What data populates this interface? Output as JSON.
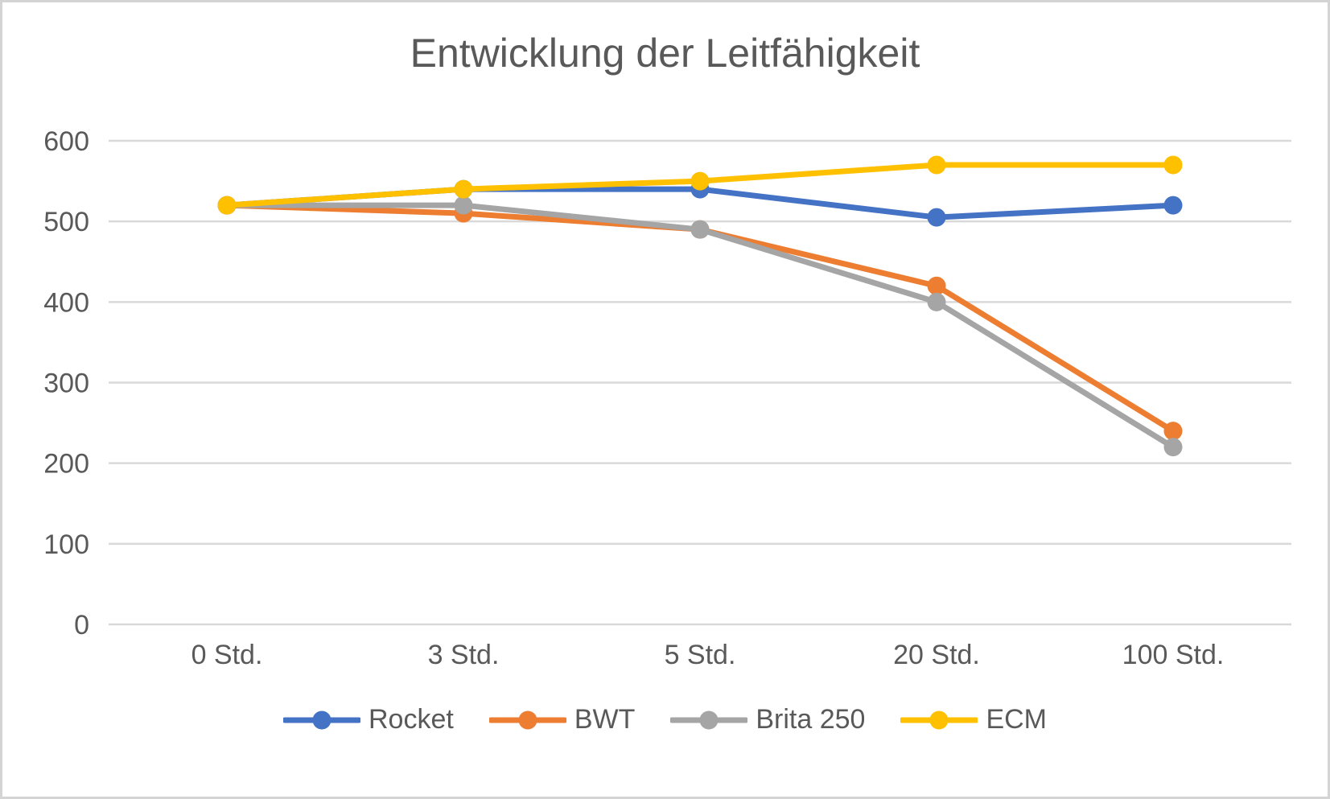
{
  "chart_data": {
    "type": "line",
    "title": "Entwicklung der Leitfähigkeit",
    "categories": [
      "0 Std.",
      "3 Std.",
      "5 Std.",
      "20 Std.",
      "100 Std."
    ],
    "series": [
      {
        "name": "Rocket",
        "color": "#4472C4",
        "values": [
          520,
          540,
          540,
          505,
          520
        ]
      },
      {
        "name": "BWT",
        "color": "#ED7D31",
        "values": [
          520,
          510,
          490,
          420,
          240
        ]
      },
      {
        "name": "Brita 250",
        "color": "#A5A5A5",
        "values": [
          520,
          520,
          490,
          400,
          220
        ]
      },
      {
        "name": "ECM",
        "color": "#FFC000",
        "values": [
          520,
          540,
          550,
          570,
          570
        ]
      }
    ],
    "ylim": [
      0,
      600
    ],
    "yticks": [
      0,
      100,
      200,
      300,
      400,
      500,
      600
    ],
    "xlabel": "",
    "ylabel": "",
    "grid": true,
    "legend_position": "bottom",
    "colors": {
      "text": "#595959",
      "grid": "#D9D9D9",
      "background": "#FFFFFF",
      "border": "#D4D4D4"
    }
  }
}
